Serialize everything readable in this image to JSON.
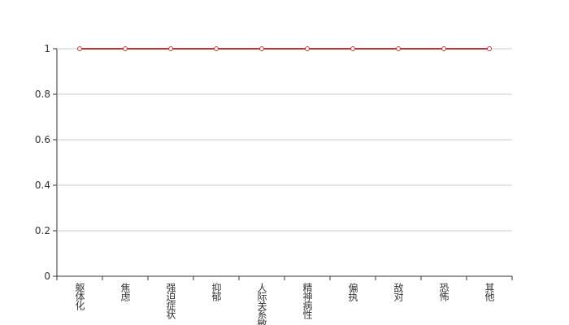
{
  "chart_data": {
    "type": "line",
    "categories": [
      "躯体化",
      "焦虑",
      "强迫症状",
      "抑郁",
      "人际关系敏感",
      "精神病性",
      "偏执",
      "敌对",
      "恐怖",
      "其他"
    ],
    "series": [
      {
        "color": "#c23531",
        "values": [
          1,
          1,
          1,
          1,
          1,
          1,
          1,
          1,
          1,
          1
        ]
      }
    ],
    "ylim": [
      0,
      1
    ],
    "yticks": [
      0,
      0.2,
      0.4,
      0.6,
      0.8,
      1
    ],
    "grid": true
  }
}
